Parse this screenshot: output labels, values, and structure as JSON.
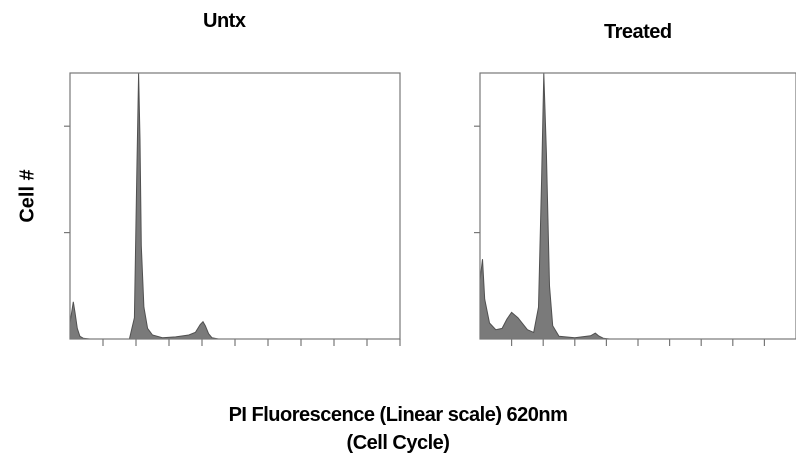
{
  "chart_data": [
    {
      "type": "area",
      "title": "Untx",
      "ylabel": "Cell #",
      "xlim": [
        0,
        100
      ],
      "ylim": [
        0,
        100
      ],
      "x_ticks_count": 10,
      "y_ticks_count": 3,
      "fill_color": "#7a7a7a",
      "series": [
        {
          "x": [
            0,
            1,
            1.5,
            2.2,
            3,
            4,
            6,
            10,
            18,
            19.5,
            20.2,
            20.8,
            21.2,
            21.6,
            22.4,
            23.5,
            25,
            28,
            32,
            36,
            38,
            39.5,
            40.3,
            41,
            42,
            43,
            45,
            55,
            70,
            85,
            100
          ],
          "y": [
            6,
            14,
            10,
            4,
            1,
            0.3,
            0,
            0,
            0,
            8,
            60,
            100,
            75,
            35,
            12,
            4,
            1.5,
            0.5,
            0.8,
            1.5,
            2.5,
            5.5,
            6.5,
            5,
            2,
            0.5,
            0,
            0,
            0,
            0,
            0
          ]
        }
      ]
    },
    {
      "type": "area",
      "title": "Treated",
      "xlim": [
        0,
        100
      ],
      "ylim": [
        0,
        100
      ],
      "x_ticks_count": 10,
      "y_ticks_count": 3,
      "fill_color": "#7a7a7a",
      "series": [
        {
          "x": [
            0,
            0.8,
            1.5,
            3,
            5,
            7,
            8.5,
            10,
            12,
            15,
            17,
            18.5,
            19.5,
            20.2,
            21,
            22,
            23,
            25,
            30,
            35,
            36.5,
            37.5,
            39,
            41,
            50,
            70,
            100
          ],
          "y": [
            22,
            30,
            15,
            6,
            3.5,
            4,
            7.5,
            10,
            8,
            3.5,
            2.5,
            12,
            60,
            100,
            70,
            20,
            5,
            1,
            0.5,
            1.2,
            2.2,
            1.2,
            0.3,
            0,
            0,
            0,
            0
          ]
        }
      ]
    }
  ],
  "xlabel_line1": "PI Fluorescence (Linear scale) 620nm",
  "xlabel_line2": "(Cell Cycle)"
}
